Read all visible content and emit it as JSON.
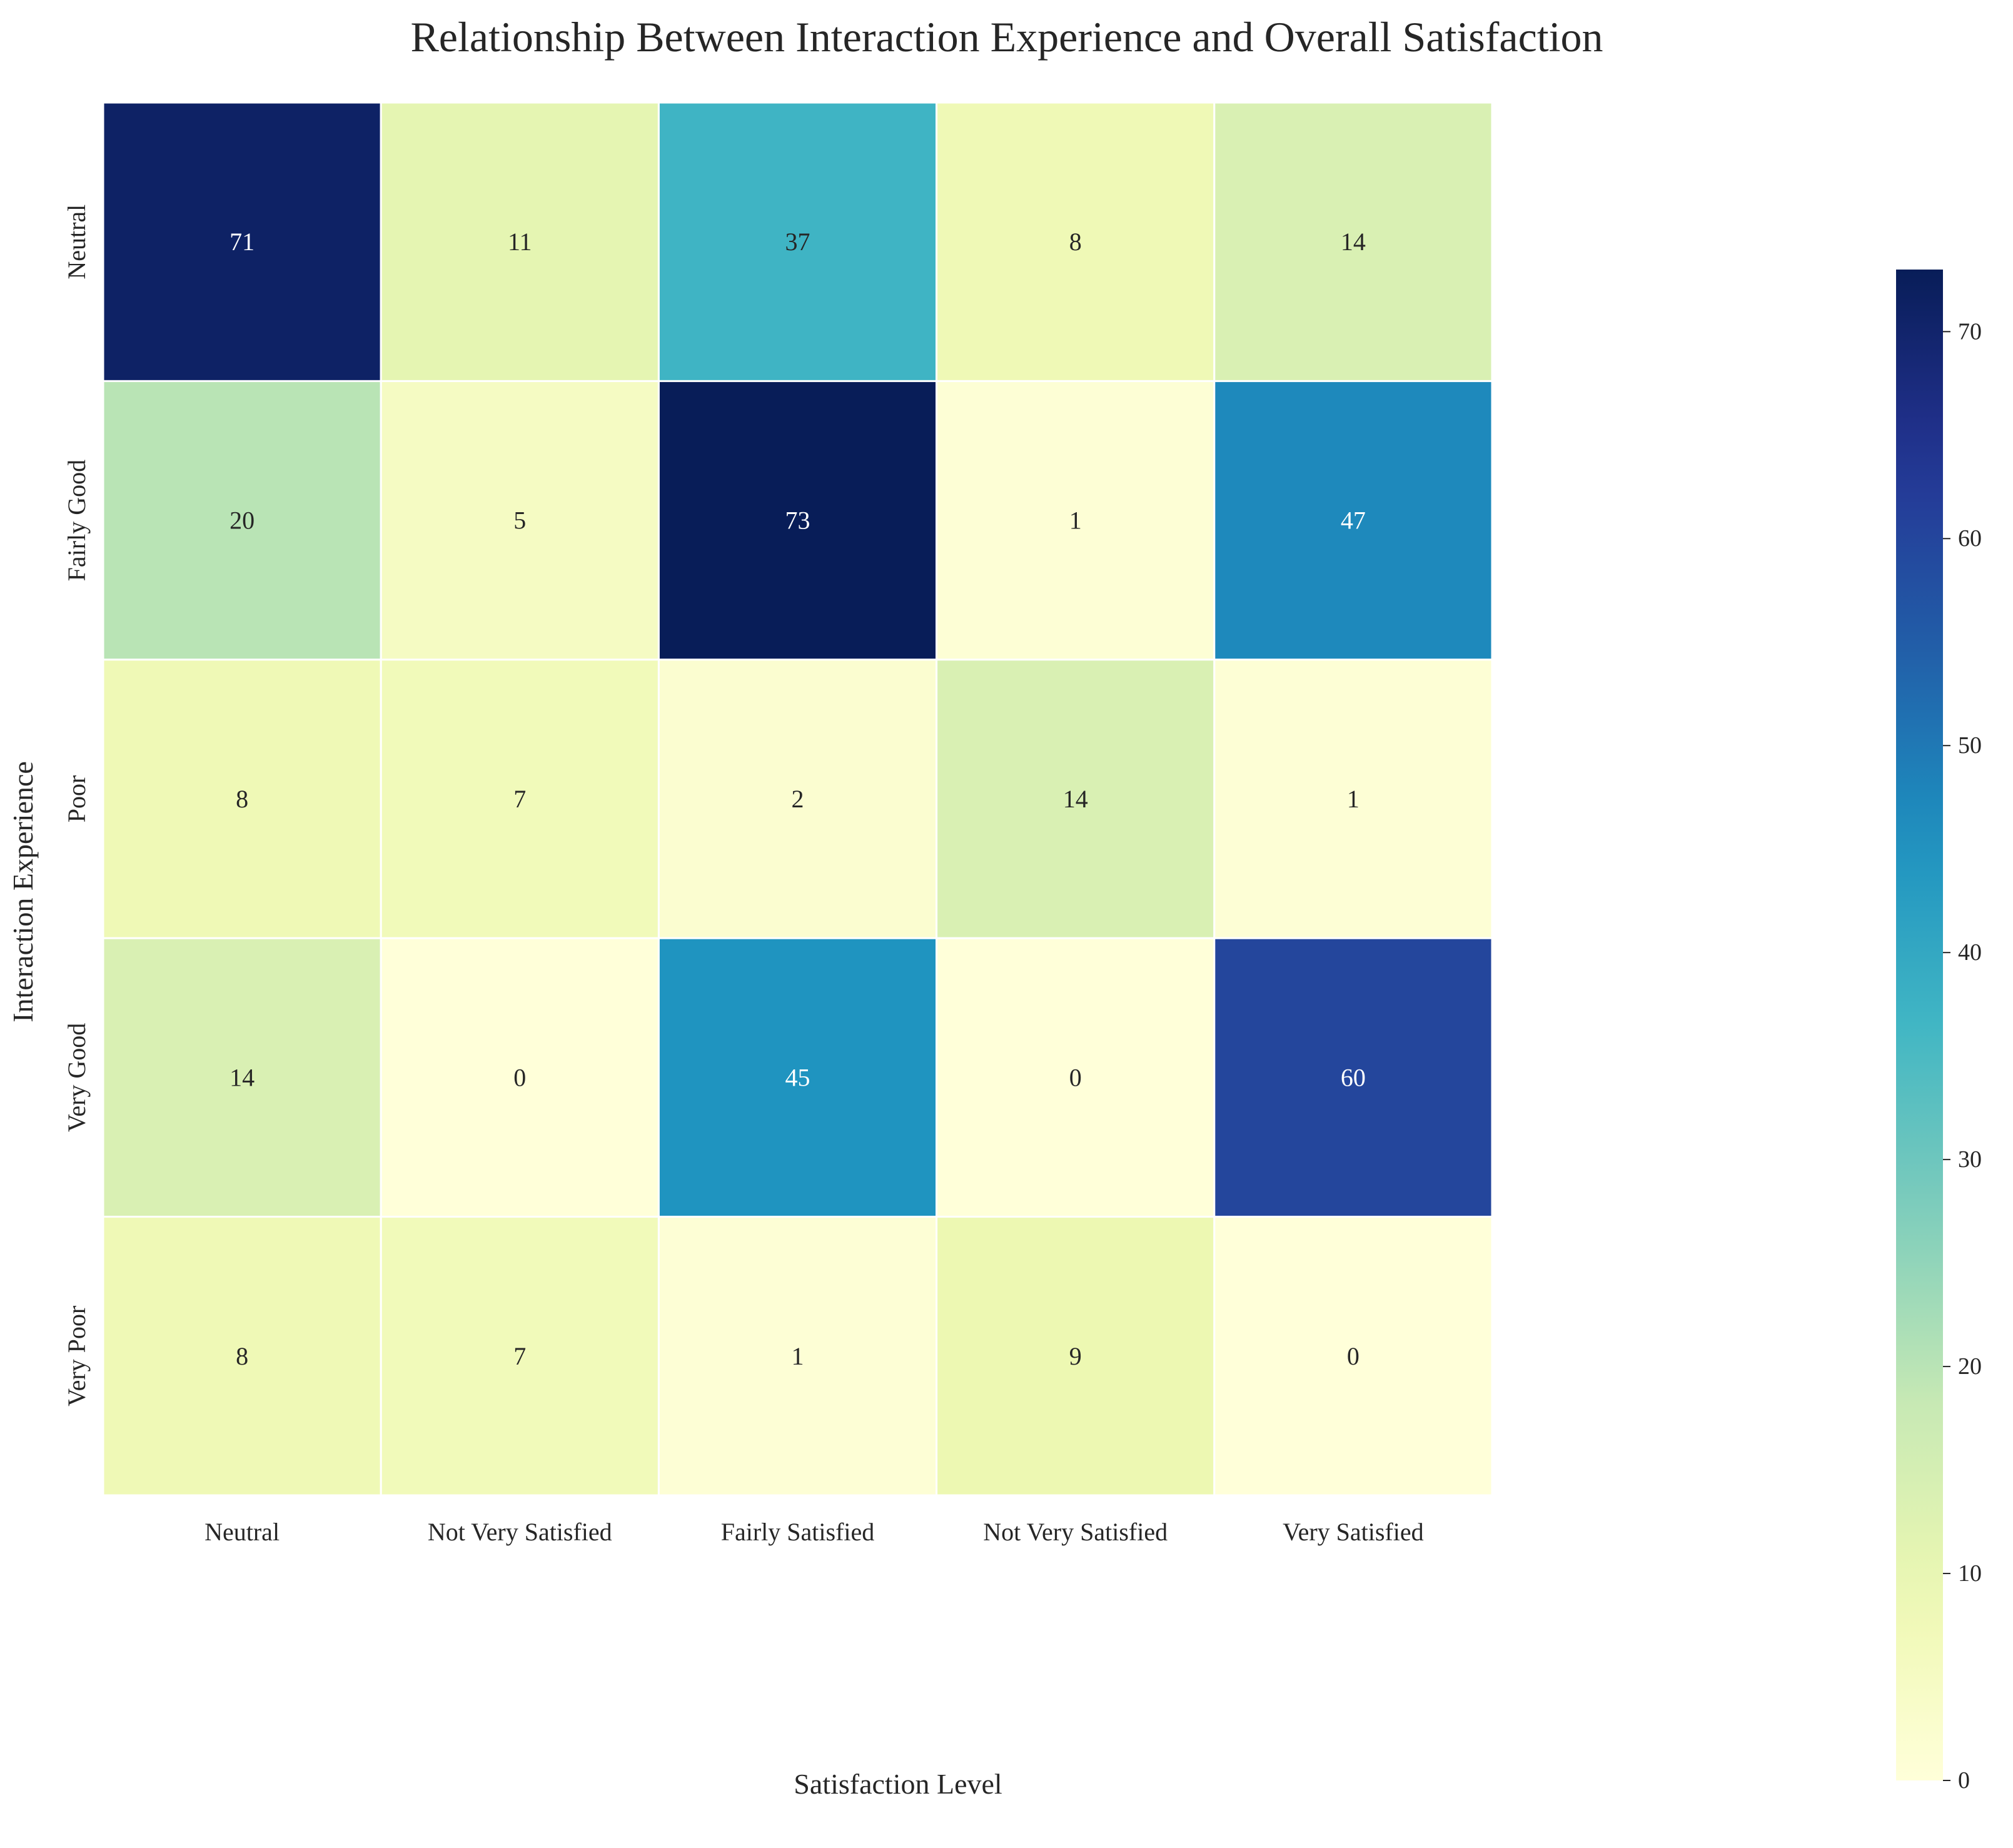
{
  "chart_data": {
    "type": "heatmap",
    "title": "Relationship Between Interaction Experience and Overall Satisfaction",
    "xlabel": "Satisfaction Level",
    "ylabel": "Interaction Experience",
    "columns": [
      "Neutral",
      "Not Very Satisfied",
      "Fairly Satisfied",
      "Not Very Satisfied",
      "Very Satisfied"
    ],
    "rows": [
      "Neutral",
      "Fairly Good",
      "Poor",
      "Very Good",
      "Very Poor"
    ],
    "values": [
      [
        71,
        11,
        37,
        8,
        14
      ],
      [
        20,
        5,
        73,
        1,
        47
      ],
      [
        8,
        7,
        2,
        14,
        1
      ],
      [
        14,
        0,
        45,
        0,
        60
      ],
      [
        8,
        7,
        1,
        9,
        0
      ]
    ],
    "colormap": "YlGnBu",
    "vmin": 0,
    "vmax": 73,
    "colorbar_ticks": [
      0,
      10,
      20,
      30,
      40,
      50,
      60,
      70
    ],
    "cell_border_color": "#ffffff"
  }
}
